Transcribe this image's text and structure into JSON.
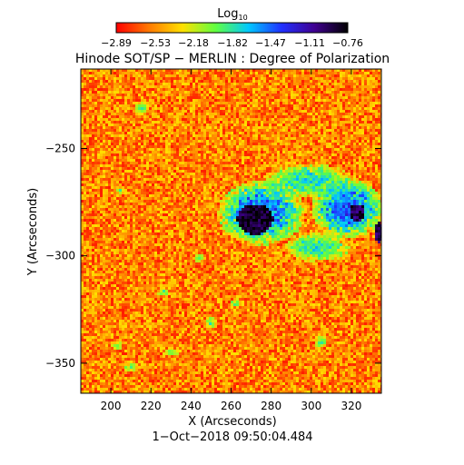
{
  "chart_data": {
    "type": "heatmap",
    "title": "Hinode SOT/SP − MERLIN : Degree of Polarization",
    "subtitle": "1−Oct−2018 09:50:04.484",
    "xlabel": "X (Arcseconds)",
    "ylabel": "Y (Arcseconds)",
    "xlim": [
      185,
      335
    ],
    "ylim": [
      -364,
      -213
    ],
    "x_ticks": [
      200,
      220,
      240,
      260,
      280,
      300,
      320
    ],
    "x_tick_labels": [
      "200",
      "220",
      "240",
      "260",
      "280",
      "300",
      "320"
    ],
    "y_ticks": [
      -250,
      -300,
      -350
    ],
    "y_tick_labels": [
      "−250",
      "−300",
      "−350"
    ],
    "colorbar": {
      "label_base": "Log",
      "label_sub": "10",
      "range": [
        -2.89,
        -0.76
      ],
      "tick_labels": [
        "−2.89",
        "−2.53",
        "−2.18",
        "−1.82",
        "−1.47",
        "−1.11",
        "−0.76"
      ],
      "tick_values": [
        -2.89,
        -2.53,
        -2.18,
        -1.82,
        -1.47,
        -1.11,
        -0.76
      ],
      "colormap": [
        "#ff0000",
        "#ff7a00",
        "#ffe000",
        "#60ff40",
        "#00c8ff",
        "#2030ff",
        "#400090",
        "#000000"
      ]
    },
    "background_level": -2.55,
    "features": [
      {
        "kind": "sunspot",
        "x": 272,
        "y": -283,
        "rx": 9,
        "ry": 7,
        "level": -0.85
      },
      {
        "kind": "pore",
        "x": 323,
        "y": -280,
        "rx": 4,
        "ry": 4,
        "level": -0.95
      },
      {
        "kind": "pore",
        "x": 334,
        "y": -289,
        "rx": 2,
        "ry": 5,
        "level": -0.95
      },
      {
        "kind": "plage",
        "x": 275,
        "y": -280,
        "rx": 22,
        "ry": 15,
        "level": -1.45
      },
      {
        "kind": "plage",
        "x": 318,
        "y": -278,
        "rx": 18,
        "ry": 14,
        "level": -1.4
      },
      {
        "kind": "plage",
        "x": 298,
        "y": -265,
        "rx": 22,
        "ry": 8,
        "level": -1.75
      },
      {
        "kind": "plage",
        "x": 303,
        "y": -296,
        "rx": 16,
        "ry": 7,
        "level": -1.75
      },
      {
        "kind": "network",
        "x": 215,
        "y": -231,
        "rx": 4,
        "ry": 3,
        "level": -1.9
      },
      {
        "kind": "network",
        "x": 226,
        "y": -317,
        "rx": 3,
        "ry": 2,
        "level": -1.9
      },
      {
        "kind": "network",
        "x": 250,
        "y": -331,
        "rx": 3,
        "ry": 3,
        "level": -1.9
      },
      {
        "kind": "network",
        "x": 203,
        "y": -342,
        "rx": 3,
        "ry": 2,
        "level": -1.95
      },
      {
        "kind": "network",
        "x": 210,
        "y": -352,
        "rx": 4,
        "ry": 2,
        "level": -1.95
      },
      {
        "kind": "network",
        "x": 244,
        "y": -301,
        "rx": 3,
        "ry": 2,
        "level": -1.95
      },
      {
        "kind": "network",
        "x": 262,
        "y": -322,
        "rx": 3,
        "ry": 2,
        "level": -1.95
      },
      {
        "kind": "network",
        "x": 230,
        "y": -345,
        "rx": 4,
        "ry": 2,
        "level": -1.95
      },
      {
        "kind": "network",
        "x": 205,
        "y": -270,
        "rx": 3,
        "ry": 2,
        "level": -2.0
      },
      {
        "kind": "network",
        "x": 305,
        "y": -340,
        "rx": 3,
        "ry": 3,
        "level": -1.95
      }
    ]
  }
}
